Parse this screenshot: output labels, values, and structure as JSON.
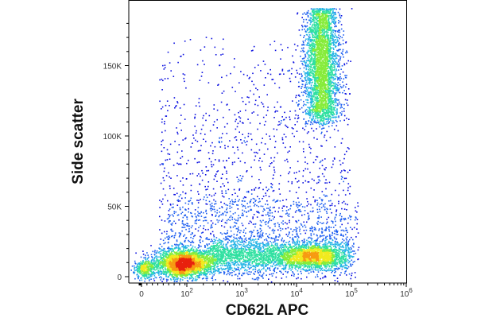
{
  "chart_data": {
    "type": "scatter",
    "style": "flow-cytometry density dot plot",
    "title": "",
    "xlabel": "CD62L APC",
    "ylabel": "Side scatter",
    "x_scale": "biexponential (linear near 0, log above 10^2)",
    "y_scale": "linear",
    "xlim": [
      -100,
      1000000
    ],
    "ylim": [
      -3000,
      195000
    ],
    "grid": false,
    "legend": "none",
    "x_ticks": [
      {
        "value": 0,
        "label": "0"
      },
      {
        "value": 100,
        "label": "10",
        "exp": "2"
      },
      {
        "value": 1000,
        "label": "10",
        "exp": "3"
      },
      {
        "value": 10000,
        "label": "10",
        "exp": "4"
      },
      {
        "value": 100000,
        "label": "10",
        "exp": "5"
      },
      {
        "value": 1000000,
        "label": "10",
        "exp": "6"
      }
    ],
    "y_ticks": [
      {
        "value": 0,
        "label": "0"
      },
      {
        "value": 50000,
        "label": "50K"
      },
      {
        "value": 100000,
        "label": "100K"
      },
      {
        "value": 150000,
        "label": "150K"
      }
    ],
    "populations": [
      {
        "name": "CD62L-negative low-SSC cluster",
        "x_center": 80,
        "y_center": 9000,
        "density": "peak"
      },
      {
        "name": "CD62L-positive low-SSC band",
        "x_range": [
          300,
          30000
        ],
        "y_center": 15000,
        "density": "high"
      },
      {
        "name": "CD62L-positive high-SSC cluster",
        "x_center": 25000,
        "y_range": [
          125000,
          195000
        ],
        "density": "high"
      }
    ],
    "density_colors": [
      "#0a0fe0",
      "#1f5ff0",
      "#27b5e6",
      "#2fe0a0",
      "#86ec3a",
      "#f0ea1e",
      "#f79a12",
      "#e8220e"
    ]
  }
}
